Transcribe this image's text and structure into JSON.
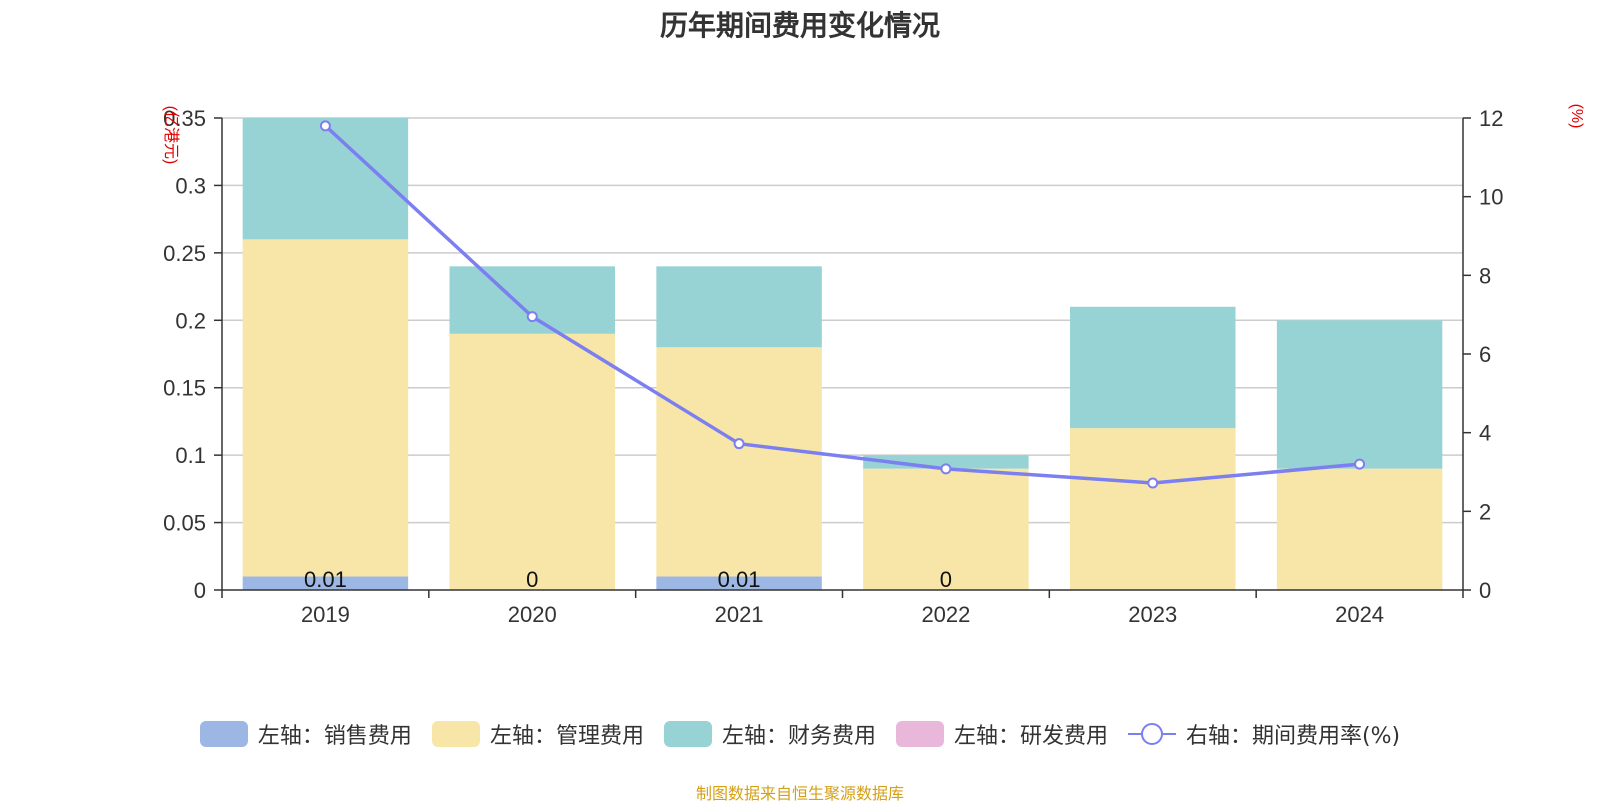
{
  "title": "历年期间费用变化情况",
  "source": "制图数据来自恒生聚源数据库",
  "colors": {
    "sales": "#9cb7e3",
    "admin": "#f7e6a7",
    "finance": "#97d3d4",
    "rd": "#e8b7d9",
    "rate": "#7b7ff0",
    "axis_unit": "#e00000",
    "grid": "#cccccc"
  },
  "legend": [
    {
      "label": "左轴：销售费用",
      "type": "swatch",
      "color": "#9cb7e3"
    },
    {
      "label": "左轴：管理费用",
      "type": "swatch",
      "color": "#f7e6a7"
    },
    {
      "label": "左轴：财务费用",
      "type": "swatch",
      "color": "#97d3d4"
    },
    {
      "label": "左轴：研发费用",
      "type": "swatch",
      "color": "#e8b7d9"
    },
    {
      "label": "右轴：期间费用率(%)",
      "type": "line",
      "color": "#7b7ff0"
    }
  ],
  "chart_data": {
    "type": "bar",
    "stacked": true,
    "title": "历年期间费用变化情况",
    "categories": [
      "2019",
      "2020",
      "2021",
      "2022",
      "2023",
      "2024"
    ],
    "left_axis": {
      "unit_label": "(亿港元)",
      "ylim": [
        0,
        0.35
      ],
      "ticks": [
        "0",
        "0.05",
        "0.1",
        "0.15",
        "0.2",
        "0.25",
        "0.3",
        "0.35"
      ],
      "tick_values": [
        0,
        0.05,
        0.1,
        0.15,
        0.2,
        0.25,
        0.3,
        0.35
      ]
    },
    "right_axis": {
      "unit_label": "(%)",
      "ylim": [
        0,
        12
      ],
      "ticks": [
        "0",
        "2",
        "4",
        "6",
        "8",
        "10",
        "12"
      ],
      "tick_values": [
        0,
        2,
        4,
        6,
        8,
        10,
        12
      ]
    },
    "series": [
      {
        "name": "左轴：销售费用",
        "axis": "left",
        "values": [
          0.01,
          0,
          0.01,
          0,
          0,
          0
        ],
        "labels": [
          "0.01",
          "0",
          "0.01",
          "0",
          "",
          ""
        ]
      },
      {
        "name": "左轴：管理费用",
        "axis": "left",
        "values": [
          0.25,
          0.19,
          0.17,
          0.09,
          0.12,
          0.09
        ]
      },
      {
        "name": "左轴：财务费用",
        "axis": "left",
        "values": [
          0.09,
          0.05,
          0.06,
          0.01,
          0.09,
          0.11
        ]
      },
      {
        "name": "左轴：研发费用",
        "axis": "left",
        "values": [
          0,
          0,
          0,
          0,
          0,
          0
        ]
      },
      {
        "name": "右轴：期间费用率(%)",
        "axis": "right",
        "type": "line",
        "values": [
          11.8,
          6.95,
          3.72,
          3.08,
          2.72,
          3.2
        ]
      }
    ],
    "grid": true,
    "legend_position": "bottom"
  }
}
